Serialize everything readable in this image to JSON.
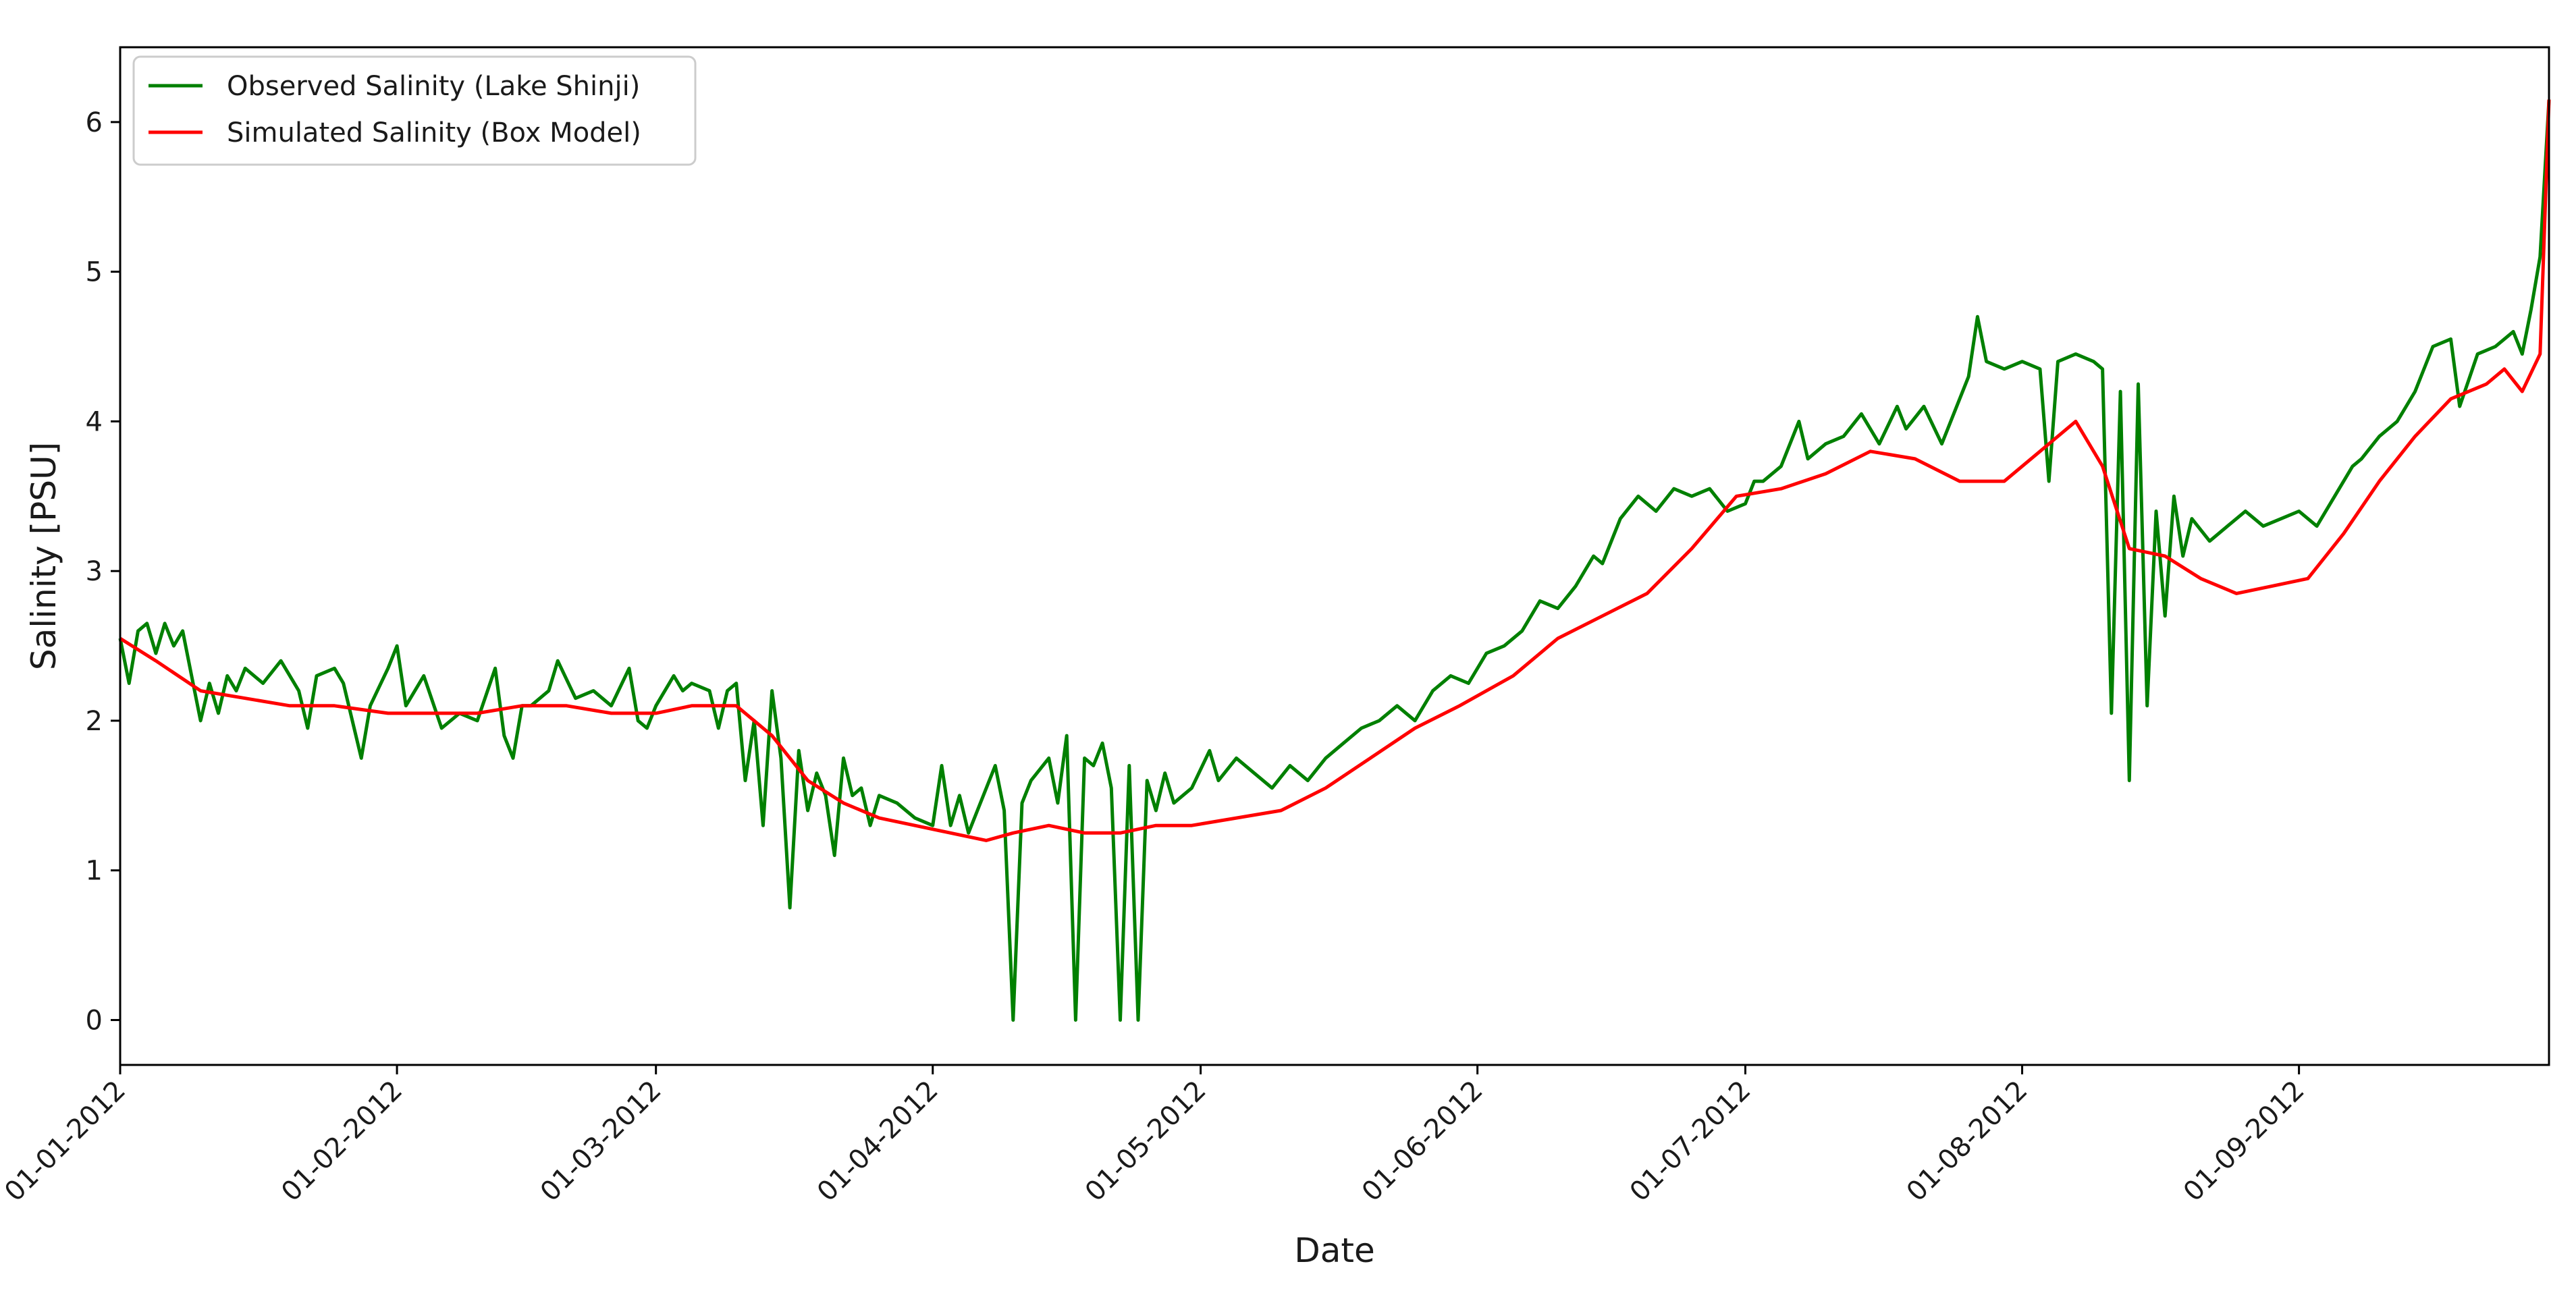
{
  "chart_data": {
    "type": "line",
    "title": "",
    "xlabel": "Date",
    "ylabel": "Salinity [PSU]",
    "xlim": [
      "2012-01-01",
      "2012-09-29"
    ],
    "ylim": [
      -0.3,
      6.5
    ],
    "yticks": [
      0,
      1,
      2,
      3,
      4,
      5,
      6
    ],
    "xticks": [
      {
        "date": "2012-01-01",
        "label": "01-01-2012"
      },
      {
        "date": "2012-02-01",
        "label": "01-02-2012"
      },
      {
        "date": "2012-03-01",
        "label": "01-03-2012"
      },
      {
        "date": "2012-04-01",
        "label": "01-04-2012"
      },
      {
        "date": "2012-05-01",
        "label": "01-05-2012"
      },
      {
        "date": "2012-06-01",
        "label": "01-06-2012"
      },
      {
        "date": "2012-07-01",
        "label": "01-07-2012"
      },
      {
        "date": "2012-08-01",
        "label": "01-08-2012"
      },
      {
        "date": "2012-09-01",
        "label": "01-09-2012"
      }
    ],
    "grid": false,
    "legend_position": "top-left",
    "series": [
      {
        "name": "Observed Salinity (Lake Shinji)",
        "color": "#008000",
        "points": [
          [
            "2012-01-01",
            2.55
          ],
          [
            "2012-01-02",
            2.25
          ],
          [
            "2012-01-03",
            2.6
          ],
          [
            "2012-01-04",
            2.65
          ],
          [
            "2012-01-05",
            2.45
          ],
          [
            "2012-01-06",
            2.65
          ],
          [
            "2012-01-07",
            2.5
          ],
          [
            "2012-01-08",
            2.6
          ],
          [
            "2012-01-09",
            2.3
          ],
          [
            "2012-01-10",
            2.0
          ],
          [
            "2012-01-11",
            2.25
          ],
          [
            "2012-01-12",
            2.05
          ],
          [
            "2012-01-13",
            2.3
          ],
          [
            "2012-01-14",
            2.2
          ],
          [
            "2012-01-15",
            2.35
          ],
          [
            "2012-01-17",
            2.25
          ],
          [
            "2012-01-19",
            2.4
          ],
          [
            "2012-01-21",
            2.2
          ],
          [
            "2012-01-22",
            1.95
          ],
          [
            "2012-01-23",
            2.3
          ],
          [
            "2012-01-25",
            2.35
          ],
          [
            "2012-01-26",
            2.25
          ],
          [
            "2012-01-28",
            1.75
          ],
          [
            "2012-01-29",
            2.1
          ],
          [
            "2012-01-31",
            2.35
          ],
          [
            "2012-02-01",
            2.5
          ],
          [
            "2012-02-02",
            2.1
          ],
          [
            "2012-02-04",
            2.3
          ],
          [
            "2012-02-06",
            1.95
          ],
          [
            "2012-02-08",
            2.05
          ],
          [
            "2012-02-10",
            2.0
          ],
          [
            "2012-02-12",
            2.35
          ],
          [
            "2012-02-13",
            1.9
          ],
          [
            "2012-02-14",
            1.75
          ],
          [
            "2012-02-15",
            2.1
          ],
          [
            "2012-02-16",
            2.1
          ],
          [
            "2012-02-18",
            2.2
          ],
          [
            "2012-02-19",
            2.4
          ],
          [
            "2012-02-21",
            2.15
          ],
          [
            "2012-02-23",
            2.2
          ],
          [
            "2012-02-25",
            2.1
          ],
          [
            "2012-02-27",
            2.35
          ],
          [
            "2012-02-28",
            2.0
          ],
          [
            "2012-02-29",
            1.95
          ],
          [
            "2012-03-01",
            2.1
          ],
          [
            "2012-03-03",
            2.3
          ],
          [
            "2012-03-04",
            2.2
          ],
          [
            "2012-03-05",
            2.25
          ],
          [
            "2012-03-07",
            2.2
          ],
          [
            "2012-03-08",
            1.95
          ],
          [
            "2012-03-09",
            2.2
          ],
          [
            "2012-03-10",
            2.25
          ],
          [
            "2012-03-11",
            1.6
          ],
          [
            "2012-03-12",
            2.0
          ],
          [
            "2012-03-13",
            1.3
          ],
          [
            "2012-03-14",
            2.2
          ],
          [
            "2012-03-15",
            1.75
          ],
          [
            "2012-03-16",
            0.75
          ],
          [
            "2012-03-17",
            1.8
          ],
          [
            "2012-03-18",
            1.4
          ],
          [
            "2012-03-19",
            1.65
          ],
          [
            "2012-03-20",
            1.5
          ],
          [
            "2012-03-21",
            1.1
          ],
          [
            "2012-03-22",
            1.75
          ],
          [
            "2012-03-23",
            1.5
          ],
          [
            "2012-03-24",
            1.55
          ],
          [
            "2012-03-25",
            1.3
          ],
          [
            "2012-03-26",
            1.5
          ],
          [
            "2012-03-28",
            1.45
          ],
          [
            "2012-03-30",
            1.35
          ],
          [
            "2012-04-01",
            1.3
          ],
          [
            "2012-04-02",
            1.7
          ],
          [
            "2012-04-03",
            1.3
          ],
          [
            "2012-04-04",
            1.5
          ],
          [
            "2012-04-05",
            1.25
          ],
          [
            "2012-04-06",
            1.4
          ],
          [
            "2012-04-08",
            1.7
          ],
          [
            "2012-04-09",
            1.4
          ],
          [
            "2012-04-10",
            0.0
          ],
          [
            "2012-04-11",
            1.45
          ],
          [
            "2012-04-12",
            1.6
          ],
          [
            "2012-04-14",
            1.75
          ],
          [
            "2012-04-15",
            1.45
          ],
          [
            "2012-04-16",
            1.9
          ],
          [
            "2012-04-17",
            0.0
          ],
          [
            "2012-04-18",
            1.75
          ],
          [
            "2012-04-19",
            1.7
          ],
          [
            "2012-04-20",
            1.85
          ],
          [
            "2012-04-21",
            1.55
          ],
          [
            "2012-04-22",
            0.0
          ],
          [
            "2012-04-23",
            1.7
          ],
          [
            "2012-04-24",
            0.0
          ],
          [
            "2012-04-25",
            1.6
          ],
          [
            "2012-04-26",
            1.4
          ],
          [
            "2012-04-27",
            1.65
          ],
          [
            "2012-04-28",
            1.45
          ],
          [
            "2012-04-30",
            1.55
          ],
          [
            "2012-05-02",
            1.8
          ],
          [
            "2012-05-03",
            1.6
          ],
          [
            "2012-05-05",
            1.75
          ],
          [
            "2012-05-07",
            1.65
          ],
          [
            "2012-05-09",
            1.55
          ],
          [
            "2012-05-11",
            1.7
          ],
          [
            "2012-05-13",
            1.6
          ],
          [
            "2012-05-15",
            1.75
          ],
          [
            "2012-05-17",
            1.85
          ],
          [
            "2012-05-19",
            1.95
          ],
          [
            "2012-05-21",
            2.0
          ],
          [
            "2012-05-23",
            2.1
          ],
          [
            "2012-05-25",
            2.0
          ],
          [
            "2012-05-27",
            2.2
          ],
          [
            "2012-05-29",
            2.3
          ],
          [
            "2012-05-31",
            2.25
          ],
          [
            "2012-06-02",
            2.45
          ],
          [
            "2012-06-04",
            2.5
          ],
          [
            "2012-06-06",
            2.6
          ],
          [
            "2012-06-08",
            2.8
          ],
          [
            "2012-06-10",
            2.75
          ],
          [
            "2012-06-12",
            2.9
          ],
          [
            "2012-06-14",
            3.1
          ],
          [
            "2012-06-15",
            3.05
          ],
          [
            "2012-06-17",
            3.35
          ],
          [
            "2012-06-19",
            3.5
          ],
          [
            "2012-06-21",
            3.4
          ],
          [
            "2012-06-23",
            3.55
          ],
          [
            "2012-06-25",
            3.5
          ],
          [
            "2012-06-27",
            3.55
          ],
          [
            "2012-06-29",
            3.4
          ],
          [
            "2012-07-01",
            3.45
          ],
          [
            "2012-07-02",
            3.6
          ],
          [
            "2012-07-03",
            3.6
          ],
          [
            "2012-07-05",
            3.7
          ],
          [
            "2012-07-07",
            4.0
          ],
          [
            "2012-07-08",
            3.75
          ],
          [
            "2012-07-10",
            3.85
          ],
          [
            "2012-07-12",
            3.9
          ],
          [
            "2012-07-14",
            4.05
          ],
          [
            "2012-07-16",
            3.85
          ],
          [
            "2012-07-18",
            4.1
          ],
          [
            "2012-07-19",
            3.95
          ],
          [
            "2012-07-21",
            4.1
          ],
          [
            "2012-07-23",
            3.85
          ],
          [
            "2012-07-25",
            4.15
          ],
          [
            "2012-07-26",
            4.3
          ],
          [
            "2012-07-27",
            4.7
          ],
          [
            "2012-07-28",
            4.4
          ],
          [
            "2012-07-30",
            4.35
          ],
          [
            "2012-08-01",
            4.4
          ],
          [
            "2012-08-03",
            4.35
          ],
          [
            "2012-08-04",
            3.6
          ],
          [
            "2012-08-05",
            4.4
          ],
          [
            "2012-08-07",
            4.45
          ],
          [
            "2012-08-09",
            4.4
          ],
          [
            "2012-08-10",
            4.35
          ],
          [
            "2012-08-11",
            2.05
          ],
          [
            "2012-08-12",
            4.2
          ],
          [
            "2012-08-13",
            1.6
          ],
          [
            "2012-08-14",
            4.25
          ],
          [
            "2012-08-15",
            2.1
          ],
          [
            "2012-08-16",
            3.4
          ],
          [
            "2012-08-17",
            2.7
          ],
          [
            "2012-08-18",
            3.5
          ],
          [
            "2012-08-19",
            3.1
          ],
          [
            "2012-08-20",
            3.35
          ],
          [
            "2012-08-22",
            3.2
          ],
          [
            "2012-08-24",
            3.3
          ],
          [
            "2012-08-26",
            3.4
          ],
          [
            "2012-08-28",
            3.3
          ],
          [
            "2012-08-30",
            3.35
          ],
          [
            "2012-09-01",
            3.4
          ],
          [
            "2012-09-03",
            3.3
          ],
          [
            "2012-09-05",
            3.5
          ],
          [
            "2012-09-07",
            3.7
          ],
          [
            "2012-09-08",
            3.75
          ],
          [
            "2012-09-10",
            3.9
          ],
          [
            "2012-09-12",
            4.0
          ],
          [
            "2012-09-14",
            4.2
          ],
          [
            "2012-09-16",
            4.5
          ],
          [
            "2012-09-18",
            4.55
          ],
          [
            "2012-09-19",
            4.1
          ],
          [
            "2012-09-21",
            4.45
          ],
          [
            "2012-09-23",
            4.5
          ],
          [
            "2012-09-25",
            4.6
          ],
          [
            "2012-09-26",
            4.45
          ],
          [
            "2012-09-27",
            4.75
          ],
          [
            "2012-09-28",
            5.1
          ],
          [
            "2012-09-29",
            6.15
          ]
        ]
      },
      {
        "name": "Simulated Salinity (Box Model)",
        "color": "#ff0000",
        "points": [
          [
            "2012-01-01",
            2.55
          ],
          [
            "2012-01-05",
            2.4
          ],
          [
            "2012-01-10",
            2.2
          ],
          [
            "2012-01-15",
            2.15
          ],
          [
            "2012-01-20",
            2.1
          ],
          [
            "2012-01-25",
            2.1
          ],
          [
            "2012-01-31",
            2.05
          ],
          [
            "2012-02-05",
            2.05
          ],
          [
            "2012-02-10",
            2.05
          ],
          [
            "2012-02-15",
            2.1
          ],
          [
            "2012-02-20",
            2.1
          ],
          [
            "2012-02-25",
            2.05
          ],
          [
            "2012-03-01",
            2.05
          ],
          [
            "2012-03-05",
            2.1
          ],
          [
            "2012-03-10",
            2.1
          ],
          [
            "2012-03-14",
            1.9
          ],
          [
            "2012-03-18",
            1.6
          ],
          [
            "2012-03-22",
            1.45
          ],
          [
            "2012-03-26",
            1.35
          ],
          [
            "2012-03-30",
            1.3
          ],
          [
            "2012-04-03",
            1.25
          ],
          [
            "2012-04-07",
            1.2
          ],
          [
            "2012-04-10",
            1.25
          ],
          [
            "2012-04-14",
            1.3
          ],
          [
            "2012-04-18",
            1.25
          ],
          [
            "2012-04-22",
            1.25
          ],
          [
            "2012-04-26",
            1.3
          ],
          [
            "2012-04-30",
            1.3
          ],
          [
            "2012-05-05",
            1.35
          ],
          [
            "2012-05-10",
            1.4
          ],
          [
            "2012-05-15",
            1.55
          ],
          [
            "2012-05-20",
            1.75
          ],
          [
            "2012-05-25",
            1.95
          ],
          [
            "2012-05-30",
            2.1
          ],
          [
            "2012-06-05",
            2.3
          ],
          [
            "2012-06-10",
            2.55
          ],
          [
            "2012-06-15",
            2.7
          ],
          [
            "2012-06-20",
            2.85
          ],
          [
            "2012-06-25",
            3.15
          ],
          [
            "2012-06-30",
            3.5
          ],
          [
            "2012-07-05",
            3.55
          ],
          [
            "2012-07-10",
            3.65
          ],
          [
            "2012-07-15",
            3.8
          ],
          [
            "2012-07-20",
            3.75
          ],
          [
            "2012-07-25",
            3.6
          ],
          [
            "2012-07-30",
            3.6
          ],
          [
            "2012-08-03",
            3.8
          ],
          [
            "2012-08-07",
            4.0
          ],
          [
            "2012-08-10",
            3.7
          ],
          [
            "2012-08-13",
            3.15
          ],
          [
            "2012-08-17",
            3.1
          ],
          [
            "2012-08-21",
            2.95
          ],
          [
            "2012-08-25",
            2.85
          ],
          [
            "2012-08-29",
            2.9
          ],
          [
            "2012-09-02",
            2.95
          ],
          [
            "2012-09-06",
            3.25
          ],
          [
            "2012-09-10",
            3.6
          ],
          [
            "2012-09-14",
            3.9
          ],
          [
            "2012-09-18",
            4.15
          ],
          [
            "2012-09-22",
            4.25
          ],
          [
            "2012-09-24",
            4.35
          ],
          [
            "2012-09-26",
            4.2
          ],
          [
            "2012-09-28",
            4.45
          ],
          [
            "2012-09-29",
            6.15
          ]
        ]
      }
    ]
  }
}
